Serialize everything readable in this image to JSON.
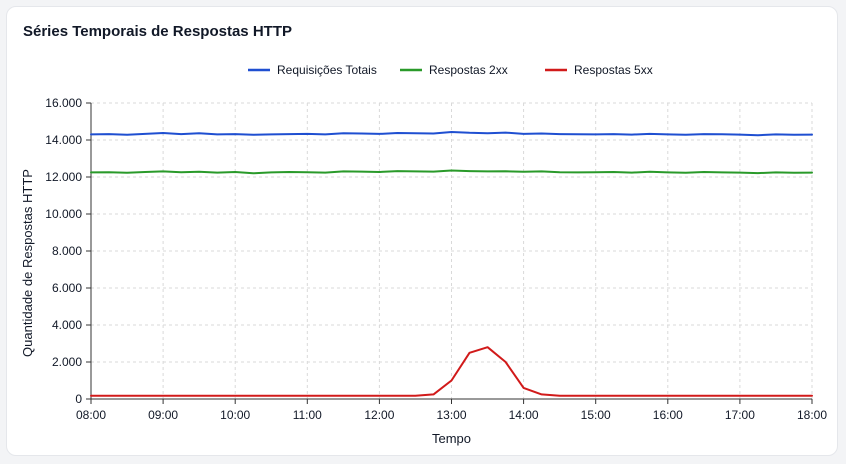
{
  "chart_data": {
    "type": "line",
    "title": "Séries Temporais de Respostas HTTP",
    "xlabel": "Tempo",
    "ylabel": "Quantidade de Respostas HTTP",
    "x_ticks": [
      "08:00",
      "09:00",
      "10:00",
      "11:00",
      "12:00",
      "13:00",
      "14:00",
      "15:00",
      "16:00",
      "17:00",
      "18:00"
    ],
    "y_ticks": [
      "0",
      "2.000",
      "4.000",
      "6.000",
      "8.000",
      "10.000",
      "12.000",
      "14.000",
      "16.000"
    ],
    "xlim": [
      "08:00",
      "18:00"
    ],
    "ylim": [
      0,
      16000
    ],
    "grid": true,
    "legend_position": "top",
    "x": [
      "08:00",
      "08:15",
      "08:30",
      "08:45",
      "09:00",
      "09:15",
      "09:30",
      "09:45",
      "10:00",
      "10:15",
      "10:30",
      "10:45",
      "11:00",
      "11:15",
      "11:30",
      "11:45",
      "12:00",
      "12:15",
      "12:30",
      "12:45",
      "13:00",
      "13:15",
      "13:30",
      "13:45",
      "14:00",
      "14:15",
      "14:30",
      "14:45",
      "15:00",
      "15:15",
      "15:30",
      "15:45",
      "16:00",
      "16:15",
      "16:30",
      "16:45",
      "17:00",
      "17:15",
      "17:30",
      "17:45",
      "18:00"
    ],
    "series": [
      {
        "name": "Requisições Totais",
        "color": "#1f4fd1",
        "values": [
          14300,
          14320,
          14280,
          14330,
          14380,
          14320,
          14360,
          14300,
          14320,
          14280,
          14300,
          14320,
          14330,
          14300,
          14370,
          14350,
          14330,
          14380,
          14360,
          14350,
          14430,
          14390,
          14370,
          14400,
          14330,
          14350,
          14320,
          14310,
          14300,
          14320,
          14290,
          14330,
          14300,
          14280,
          14320,
          14310,
          14290,
          14260,
          14300,
          14280,
          14290
        ]
      },
      {
        "name": "Respostas 2xx",
        "color": "#2a9a2a",
        "values": [
          12250,
          12260,
          12230,
          12270,
          12300,
          12260,
          12280,
          12240,
          12270,
          12200,
          12250,
          12270,
          12260,
          12240,
          12300,
          12290,
          12270,
          12320,
          12300,
          12290,
          12350,
          12320,
          12300,
          12310,
          12280,
          12300,
          12260,
          12250,
          12260,
          12270,
          12240,
          12280,
          12250,
          12230,
          12270,
          12250,
          12240,
          12210,
          12250,
          12230,
          12240
        ]
      },
      {
        "name": "Respostas 5xx",
        "color": "#d11a1a",
        "values": [
          180,
          180,
          180,
          180,
          180,
          180,
          180,
          180,
          180,
          180,
          180,
          180,
          180,
          180,
          180,
          180,
          180,
          180,
          180,
          250,
          1000,
          2500,
          2800,
          2000,
          600,
          250,
          180,
          180,
          180,
          180,
          180,
          180,
          180,
          180,
          180,
          180,
          180,
          180,
          180,
          180,
          180
        ]
      }
    ]
  }
}
